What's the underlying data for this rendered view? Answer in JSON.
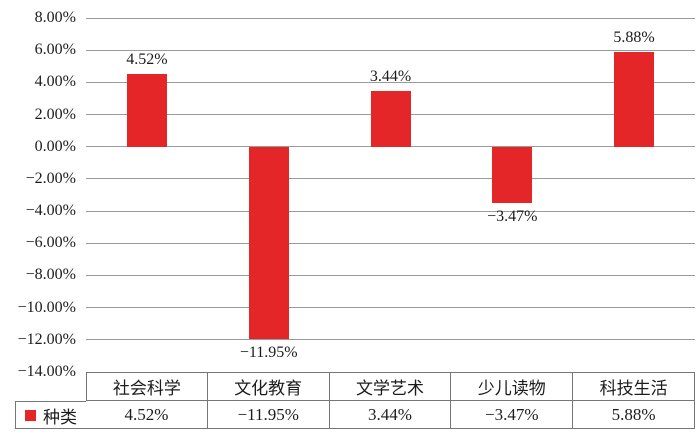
{
  "chart_data": {
    "type": "bar",
    "title": "",
    "xlabel": "",
    "ylabel": "",
    "categories": [
      "社会科学",
      "文化教育",
      "文学艺术",
      "少儿读物",
      "科技生活"
    ],
    "series": [
      {
        "name": "种类",
        "values": [
          4.52,
          -11.95,
          3.44,
          -3.47,
          5.88
        ]
      }
    ],
    "value_labels": [
      "4.52%",
      "−11.95%",
      "3.44%",
      "−3.47%",
      "5.88%"
    ],
    "y_axis": {
      "min": -14,
      "max": 8,
      "step": 2,
      "tick_labels": [
        "8.00%",
        "6.00%",
        "4.00%",
        "2.00%",
        "0.00%",
        "−2.00%",
        "−4.00%",
        "−6.00%",
        "−8.00%",
        "−10.00%",
        "−12.00%",
        "−14.00%"
      ]
    },
    "grid": "horizontal",
    "legend": {
      "label": "种类",
      "position": "data-table-left"
    },
    "data_table": {
      "row_label": "种类",
      "values": [
        "4.52%",
        "−11.95%",
        "3.44%",
        "−3.47%",
        "5.88%"
      ]
    },
    "colors": {
      "bar": "#e52628",
      "gridline": "#9b9b9b",
      "table_border": "#767676",
      "text": "#1c1c1c",
      "background": "#ffffff"
    }
  }
}
